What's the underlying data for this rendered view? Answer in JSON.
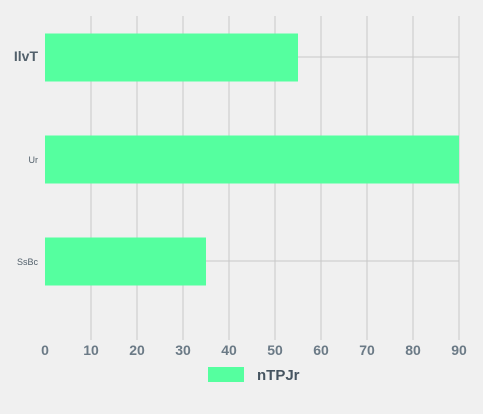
{
  "chart_data": {
    "type": "bar",
    "orientation": "horizontal",
    "categories": [
      "IlvT",
      "Ur",
      "SsBc"
    ],
    "series": [
      {
        "name": "nTPJr",
        "values": [
          55,
          90,
          35
        ]
      }
    ],
    "xlim": [
      0,
      90
    ],
    "x_ticks": [
      "0",
      "10",
      "20",
      "30",
      "40",
      "50",
      "60",
      "70",
      "80",
      "90"
    ],
    "grid": true,
    "legend_position": "bottom",
    "colors": {
      "bar": "#55ff9f",
      "grid": "#c8c8c8",
      "background": "#f0f0f0"
    }
  }
}
